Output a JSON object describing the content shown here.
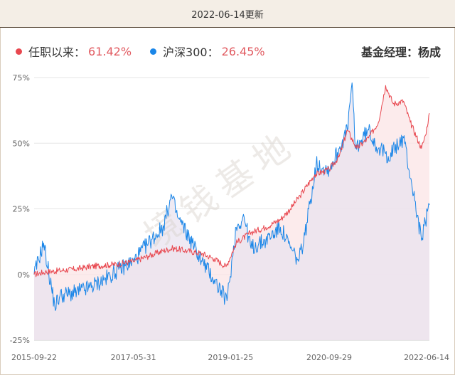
{
  "header": {
    "update_text": "2022-06-14更新"
  },
  "legend": {
    "items": [
      {
        "label": "任职以来：",
        "value": "61.42%",
        "color": "#e8474f"
      },
      {
        "label": "沪深300：",
        "value": "26.45%",
        "color": "#1a86e8"
      }
    ],
    "manager_label": "基金经理：杨成"
  },
  "watermark": "境钱基地",
  "colors": {
    "fund_line": "#e8474f",
    "index_line": "#1a86e8",
    "fund_fill": "#fbe4e6",
    "index_fill": "#e9e3ef",
    "grid": "#e6e6e6"
  },
  "chart_data": {
    "type": "line",
    "title": "",
    "ylabel": "",
    "xlabel": "",
    "ylim": [
      -25,
      75
    ],
    "yticks": [
      "-25%",
      "0%",
      "25%",
      "50%",
      "75%"
    ],
    "ytick_values": [
      -25,
      0,
      25,
      50,
      75
    ],
    "xlim": [
      "2015-09-22",
      "2022-06-14"
    ],
    "xticks": [
      "2015-09-22",
      "2017-05-31",
      "2019-01-25",
      "2020-09-29",
      "2022-06-14"
    ],
    "grid": true,
    "series": [
      {
        "name": "任职以来",
        "final_value_label": "61.42%",
        "points": [
          [
            "2015-09-22",
            0
          ],
          [
            "2015-12-01",
            1
          ],
          [
            "2016-03-01",
            1.5
          ],
          [
            "2016-06-01",
            2
          ],
          [
            "2016-09-01",
            3
          ],
          [
            "2016-12-01",
            3.5
          ],
          [
            "2017-03-01",
            4
          ],
          [
            "2017-05-31",
            5
          ],
          [
            "2017-09-01",
            7
          ],
          [
            "2017-12-01",
            9
          ],
          [
            "2018-02-01",
            10
          ],
          [
            "2018-05-01",
            9
          ],
          [
            "2018-08-01",
            8
          ],
          [
            "2018-10-15",
            6
          ],
          [
            "2018-12-28",
            3
          ],
          [
            "2019-03-01",
            12
          ],
          [
            "2019-06-01",
            16
          ],
          [
            "2019-09-01",
            18
          ],
          [
            "2019-12-01",
            21
          ],
          [
            "2020-02-01",
            25
          ],
          [
            "2020-04-01",
            30
          ],
          [
            "2020-07-01",
            38
          ],
          [
            "2020-09-29",
            40
          ],
          [
            "2020-12-01",
            45
          ],
          [
            "2021-01-20",
            55
          ],
          [
            "2021-03-20",
            48
          ],
          [
            "2021-06-01",
            52
          ],
          [
            "2021-08-01",
            58
          ],
          [
            "2021-09-15",
            72
          ],
          [
            "2021-11-01",
            65
          ],
          [
            "2022-01-04",
            66
          ],
          [
            "2022-02-15",
            58
          ],
          [
            "2022-04-26",
            48
          ],
          [
            "2022-05-20",
            53
          ],
          [
            "2022-06-14",
            61.42
          ]
        ]
      },
      {
        "name": "沪深300",
        "final_value_label": "26.45%",
        "points": [
          [
            "2015-09-22",
            0
          ],
          [
            "2015-11-20",
            12
          ],
          [
            "2016-01-28",
            -12
          ],
          [
            "2016-03-01",
            -8
          ],
          [
            "2016-06-01",
            -7
          ],
          [
            "2016-09-01",
            -5
          ],
          [
            "2016-12-01",
            -2
          ],
          [
            "2017-03-01",
            2
          ],
          [
            "2017-05-31",
            5
          ],
          [
            "2017-09-01",
            12
          ],
          [
            "2017-12-01",
            18
          ],
          [
            "2018-01-24",
            30
          ],
          [
            "2018-03-01",
            22
          ],
          [
            "2018-06-01",
            12
          ],
          [
            "2018-08-01",
            5
          ],
          [
            "2018-10-15",
            -2
          ],
          [
            "2019-01-03",
            -10
          ],
          [
            "2019-03-01",
            18
          ],
          [
            "2019-04-19",
            22
          ],
          [
            "2019-06-01",
            10
          ],
          [
            "2019-09-01",
            13
          ],
          [
            "2019-12-01",
            18
          ],
          [
            "2020-02-01",
            10
          ],
          [
            "2020-03-23",
            5
          ],
          [
            "2020-05-01",
            15
          ],
          [
            "2020-07-10",
            42
          ],
          [
            "2020-09-29",
            40
          ],
          [
            "2020-12-01",
            48
          ],
          [
            "2021-01-20",
            55
          ],
          [
            "2021-02-18",
            73
          ],
          [
            "2021-03-10",
            48
          ],
          [
            "2021-06-01",
            55
          ],
          [
            "2021-08-01",
            48
          ],
          [
            "2021-10-01",
            45
          ],
          [
            "2021-12-10",
            50
          ],
          [
            "2022-01-04",
            52
          ],
          [
            "2022-03-15",
            28
          ],
          [
            "2022-04-26",
            13
          ],
          [
            "2022-05-20",
            20
          ],
          [
            "2022-06-14",
            26.45
          ]
        ]
      }
    ]
  }
}
